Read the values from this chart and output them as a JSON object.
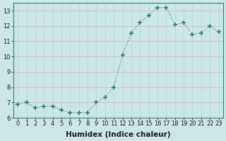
{
  "x": [
    0,
    1,
    2,
    3,
    4,
    5,
    6,
    7,
    8,
    9,
    10,
    11,
    12,
    13,
    14,
    15,
    16,
    17,
    18,
    19,
    20,
    21,
    22,
    23
  ],
  "y": [
    6.9,
    7.0,
    6.65,
    6.75,
    6.75,
    6.5,
    6.35,
    6.35,
    6.35,
    7.0,
    7.35,
    8.0,
    10.1,
    11.55,
    12.2,
    12.7,
    13.2,
    13.2,
    12.1,
    12.2,
    11.45,
    11.55,
    12.0,
    11.6
  ],
  "line_color": "#2e7d6e",
  "marker": "+",
  "marker_size": 4,
  "bg_color": "#cce8e6",
  "plot_bg_color": "#cce8e6",
  "grid_color_h": "#e8b0b0",
  "grid_color_v": "#b0d8d6",
  "xlabel": "Humidex (Indice chaleur)",
  "ylim": [
    6,
    13.5
  ],
  "xlim": [
    -0.5,
    23.5
  ],
  "yticks": [
    6,
    7,
    8,
    9,
    10,
    11,
    12,
    13
  ],
  "xticks": [
    0,
    1,
    2,
    3,
    4,
    5,
    6,
    7,
    8,
    9,
    10,
    11,
    12,
    13,
    14,
    15,
    16,
    17,
    18,
    19,
    20,
    21,
    22,
    23
  ],
  "tick_fontsize": 6.0,
  "xlabel_fontsize": 7.5,
  "label_color": "#1a1a1a"
}
